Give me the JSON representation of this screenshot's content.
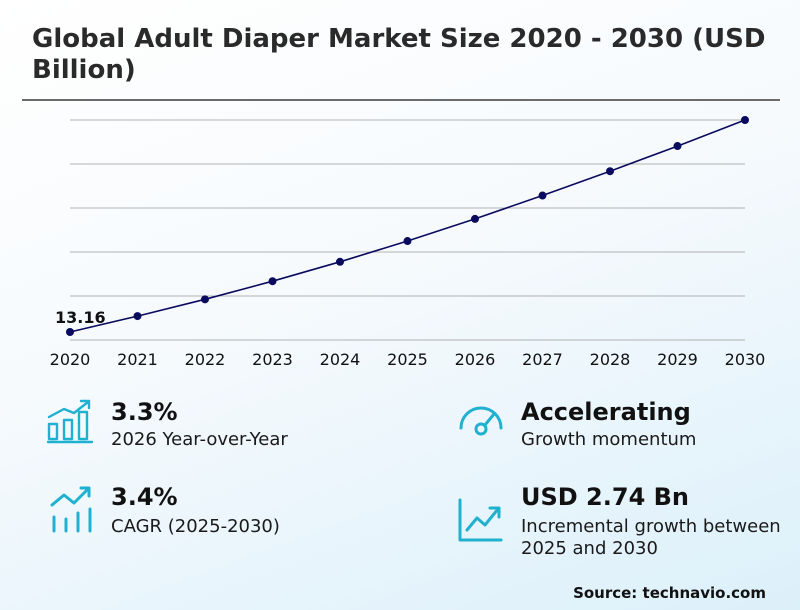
{
  "title": "Global Adult Diaper Market Size 2020 - 2030 (USD Billion)",
  "chart_data": {
    "type": "line",
    "title": "Global Adult Diaper Market Size 2020 - 2030 (USD Billion)",
    "x": [
      "2020",
      "2021",
      "2022",
      "2023",
      "2024",
      "2025",
      "2026",
      "2027",
      "2028",
      "2029",
      "2030"
    ],
    "series": [
      {
        "values": [
          13.16,
          13.52,
          13.9,
          14.31,
          14.75,
          15.22,
          15.72,
          16.25,
          16.8,
          17.37,
          17.96
        ],
        "color": "#0a0a5e"
      }
    ],
    "annotations": [
      {
        "x": "2020",
        "text": "13.16"
      }
    ],
    "ylim": [
      13.16,
      17.96
    ],
    "grid": true,
    "legend": "none"
  },
  "kpis": [
    {
      "value": "3.3%",
      "label": "2026 Year-over-Year",
      "icon": "bar-chart-growth-icon"
    },
    {
      "value": "Accelerating",
      "label": "Growth momentum",
      "icon": "speedometer-icon"
    },
    {
      "value": "3.4%",
      "label": "CAGR (2025-2030)",
      "icon": "trend-bars-icon"
    },
    {
      "value": "USD 2.74 Bn",
      "label": "Incremental growth between 2025 and 2030",
      "icon": "trend-line-chart-icon"
    }
  ],
  "colors": {
    "accent": "#1fb1cf",
    "line": "#0a0a5e",
    "grid": "#9a9a9a"
  },
  "source": "Source: technavio.com"
}
